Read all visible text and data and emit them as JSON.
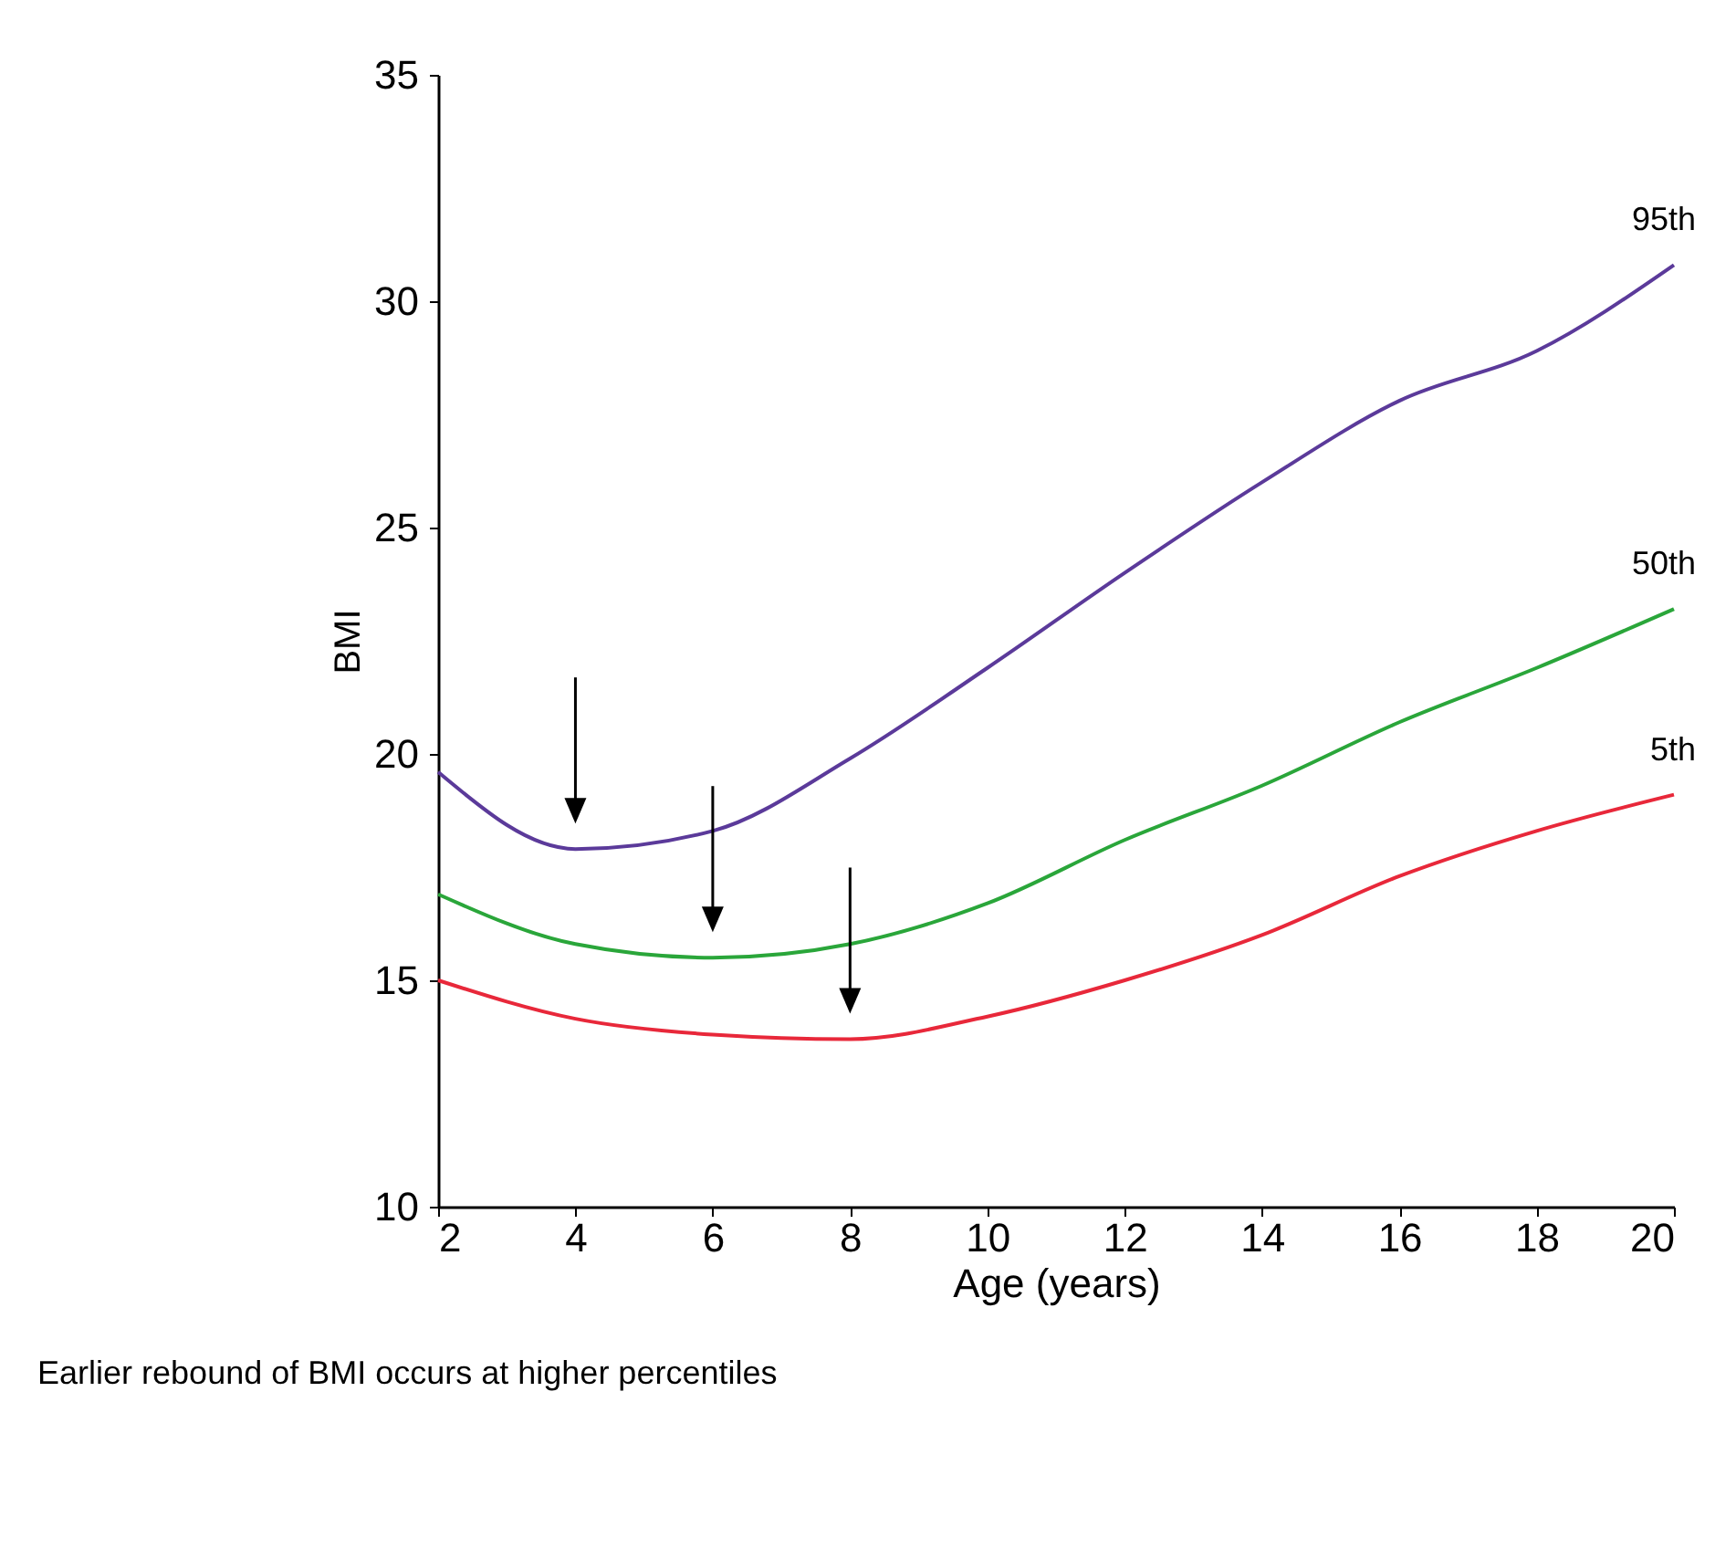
{
  "chart_data": {
    "type": "line",
    "xlabel": "Age (years)",
    "ylabel": "BMI",
    "x": [
      2,
      4,
      6,
      8,
      10,
      12,
      14,
      16,
      18,
      20
    ],
    "xlim": [
      2,
      20
    ],
    "xticks": [
      2,
      4,
      6,
      8,
      10,
      12,
      14,
      16,
      18,
      20
    ],
    "ylim": [
      10,
      35
    ],
    "yticks": [
      10,
      15,
      20,
      25,
      30,
      35
    ],
    "grid": false,
    "legend": false,
    "series": [
      {
        "name": "95th",
        "color": "#5b3a9a",
        "values": [
          19.6,
          17.9,
          18.3,
          19.9,
          21.9,
          24.0,
          26.0,
          27.8,
          28.9,
          30.8
        ]
      },
      {
        "name": "50th",
        "color": "#2aa63a",
        "values": [
          16.9,
          15.8,
          15.5,
          15.8,
          16.7,
          18.1,
          19.3,
          20.7,
          21.9,
          23.2
        ]
      },
      {
        "name": "5th",
        "color": "#e8283a",
        "values": [
          15.0,
          14.15,
          13.8,
          13.7,
          14.2,
          15.0,
          16.0,
          17.3,
          18.3,
          19.1
        ]
      }
    ],
    "annotations": [
      "Earlier rebound of BMI occurs at higher percentiles"
    ]
  }
}
